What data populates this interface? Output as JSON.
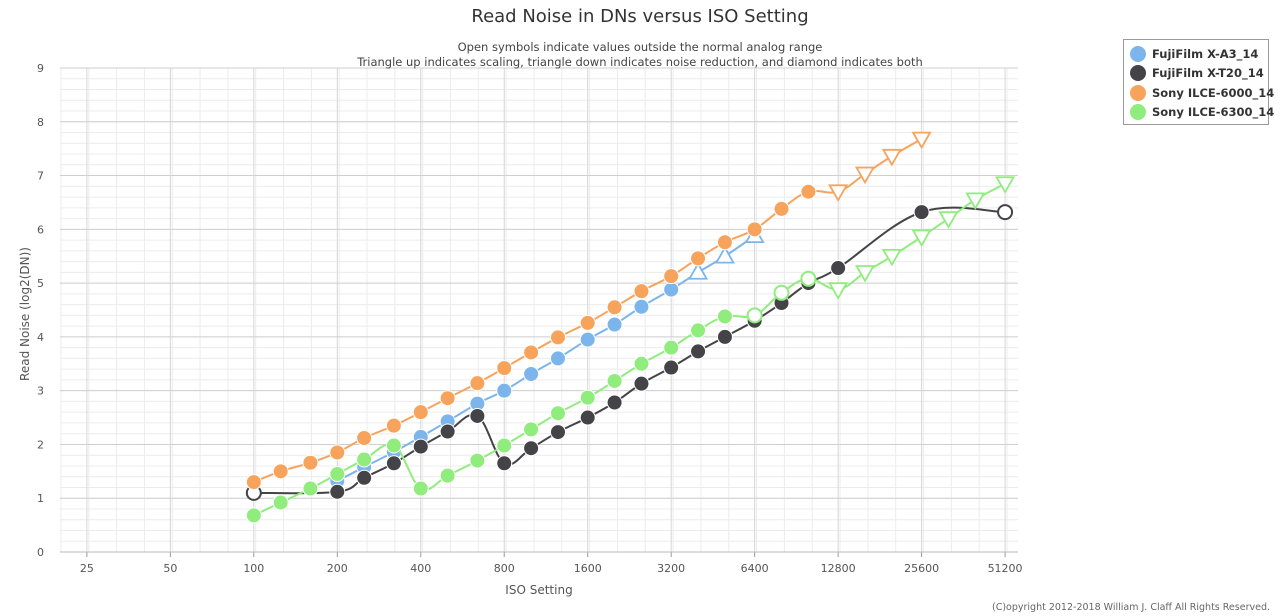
{
  "chart_data": {
    "type": "line",
    "title": "Read Noise in DNs versus ISO Setting",
    "subtitle_lines": [
      "Open symbols indicate values outside the normal analog range",
      "Triangle up indicates scaling, triangle down indicates noise reduction, and diamond indicates both"
    ],
    "xlabel": "ISO Setting",
    "ylabel": "Read Noise (log2(DN))",
    "x_scale": "log2",
    "xlim": [
      20,
      57000
    ],
    "ylim": [
      0,
      9
    ],
    "x_ticks": [
      25,
      50,
      100,
      200,
      400,
      800,
      1600,
      3200,
      6400,
      12800,
      25600,
      51200
    ],
    "y_ticks": [
      0,
      1,
      2,
      3,
      4,
      5,
      6,
      7,
      8,
      9
    ],
    "grid": true,
    "legend_position": "top-right",
    "series": [
      {
        "name": "FujiFilm X-A3_14",
        "color": "#7cb5ec",
        "points": [
          {
            "x": 200,
            "y": 1.32,
            "m": "circle"
          },
          {
            "x": 250,
            "y": 1.58,
            "m": "circle"
          },
          {
            "x": 320,
            "y": 1.86,
            "m": "circle"
          },
          {
            "x": 400,
            "y": 2.14,
            "m": "circle"
          },
          {
            "x": 500,
            "y": 2.43,
            "m": "circle"
          },
          {
            "x": 640,
            "y": 2.76,
            "m": "circle"
          },
          {
            "x": 800,
            "y": 3.0,
            "m": "circle"
          },
          {
            "x": 1000,
            "y": 3.31,
            "m": "circle"
          },
          {
            "x": 1250,
            "y": 3.6,
            "m": "circle"
          },
          {
            "x": 1600,
            "y": 3.95,
            "m": "circle"
          },
          {
            "x": 2000,
            "y": 4.23,
            "m": "circle"
          },
          {
            "x": 2500,
            "y": 4.56,
            "m": "circle"
          },
          {
            "x": 3200,
            "y": 4.88,
            "m": "circle"
          },
          {
            "x": 4000,
            "y": 5.2,
            "m": "triangle-up-open"
          },
          {
            "x": 5000,
            "y": 5.5,
            "m": "triangle-up-open"
          },
          {
            "x": 6400,
            "y": 5.88,
            "m": "triangle-up-open"
          }
        ]
      },
      {
        "name": "FujiFilm X-T20_14",
        "color": "#434348",
        "points": [
          {
            "x": 100,
            "y": 1.1,
            "m": "circle-open"
          },
          {
            "x": 200,
            "y": 1.12,
            "m": "circle"
          },
          {
            "x": 250,
            "y": 1.38,
            "m": "circle"
          },
          {
            "x": 320,
            "y": 1.65,
            "m": "circle"
          },
          {
            "x": 400,
            "y": 1.96,
            "m": "circle"
          },
          {
            "x": 500,
            "y": 2.24,
            "m": "circle"
          },
          {
            "x": 640,
            "y": 2.53,
            "m": "circle"
          },
          {
            "x": 800,
            "y": 1.65,
            "m": "circle"
          },
          {
            "x": 1000,
            "y": 1.93,
            "m": "circle"
          },
          {
            "x": 1250,
            "y": 2.23,
            "m": "circle"
          },
          {
            "x": 1600,
            "y": 2.5,
            "m": "circle"
          },
          {
            "x": 2000,
            "y": 2.78,
            "m": "circle"
          },
          {
            "x": 2500,
            "y": 3.13,
            "m": "circle"
          },
          {
            "x": 3200,
            "y": 3.43,
            "m": "circle"
          },
          {
            "x": 4000,
            "y": 3.73,
            "m": "circle"
          },
          {
            "x": 5000,
            "y": 4.0,
            "m": "circle"
          },
          {
            "x": 6400,
            "y": 4.3,
            "m": "circle"
          },
          {
            "x": 8000,
            "y": 4.63,
            "m": "circle"
          },
          {
            "x": 10000,
            "y": 5.0,
            "m": "circle"
          },
          {
            "x": 12800,
            "y": 5.28,
            "m": "circle"
          },
          {
            "x": 25600,
            "y": 6.32,
            "m": "circle"
          },
          {
            "x": 51200,
            "y": 6.32,
            "m": "circle-open"
          }
        ]
      },
      {
        "name": "Sony ILCE-6000_14",
        "color": "#f7a35c",
        "points": [
          {
            "x": 100,
            "y": 1.3,
            "m": "circle"
          },
          {
            "x": 125,
            "y": 1.5,
            "m": "circle"
          },
          {
            "x": 160,
            "y": 1.66,
            "m": "circle"
          },
          {
            "x": 200,
            "y": 1.85,
            "m": "circle"
          },
          {
            "x": 250,
            "y": 2.12,
            "m": "circle"
          },
          {
            "x": 320,
            "y": 2.35,
            "m": "circle"
          },
          {
            "x": 400,
            "y": 2.6,
            "m": "circle"
          },
          {
            "x": 500,
            "y": 2.86,
            "m": "circle"
          },
          {
            "x": 640,
            "y": 3.14,
            "m": "circle"
          },
          {
            "x": 800,
            "y": 3.42,
            "m": "circle"
          },
          {
            "x": 1000,
            "y": 3.71,
            "m": "circle"
          },
          {
            "x": 1250,
            "y": 3.99,
            "m": "circle"
          },
          {
            "x": 1600,
            "y": 4.26,
            "m": "circle"
          },
          {
            "x": 2000,
            "y": 4.55,
            "m": "circle"
          },
          {
            "x": 2500,
            "y": 4.85,
            "m": "circle"
          },
          {
            "x": 3200,
            "y": 5.13,
            "m": "circle"
          },
          {
            "x": 4000,
            "y": 5.46,
            "m": "circle"
          },
          {
            "x": 5000,
            "y": 5.76,
            "m": "circle"
          },
          {
            "x": 6400,
            "y": 6.0,
            "m": "circle"
          },
          {
            "x": 8000,
            "y": 6.38,
            "m": "circle"
          },
          {
            "x": 10000,
            "y": 6.7,
            "m": "circle"
          },
          {
            "x": 12800,
            "y": 6.7,
            "m": "triangle-down-open"
          },
          {
            "x": 16000,
            "y": 7.03,
            "m": "triangle-down-open"
          },
          {
            "x": 20000,
            "y": 7.36,
            "m": "triangle-down-open"
          },
          {
            "x": 25600,
            "y": 7.68,
            "m": "triangle-down-open"
          }
        ]
      },
      {
        "name": "Sony ILCE-6300_14",
        "color": "#90ed7d",
        "points": [
          {
            "x": 100,
            "y": 0.68,
            "m": "circle"
          },
          {
            "x": 125,
            "y": 0.92,
            "m": "circle"
          },
          {
            "x": 160,
            "y": 1.18,
            "m": "circle"
          },
          {
            "x": 200,
            "y": 1.45,
            "m": "circle"
          },
          {
            "x": 250,
            "y": 1.72,
            "m": "circle"
          },
          {
            "x": 320,
            "y": 1.98,
            "m": "circle"
          },
          {
            "x": 400,
            "y": 1.18,
            "m": "circle"
          },
          {
            "x": 500,
            "y": 1.42,
            "m": "circle"
          },
          {
            "x": 640,
            "y": 1.7,
            "m": "circle"
          },
          {
            "x": 800,
            "y": 1.98,
            "m": "circle"
          },
          {
            "x": 1000,
            "y": 2.28,
            "m": "circle"
          },
          {
            "x": 1250,
            "y": 2.58,
            "m": "circle"
          },
          {
            "x": 1600,
            "y": 2.87,
            "m": "circle"
          },
          {
            "x": 2000,
            "y": 3.18,
            "m": "circle"
          },
          {
            "x": 2500,
            "y": 3.5,
            "m": "circle"
          },
          {
            "x": 3200,
            "y": 3.8,
            "m": "circle"
          },
          {
            "x": 4000,
            "y": 4.12,
            "m": "circle"
          },
          {
            "x": 5000,
            "y": 4.38,
            "m": "circle"
          },
          {
            "x": 6400,
            "y": 4.4,
            "m": "circle-open"
          },
          {
            "x": 8000,
            "y": 4.82,
            "m": "circle-open"
          },
          {
            "x": 10000,
            "y": 5.08,
            "m": "circle-open"
          },
          {
            "x": 12800,
            "y": 4.88,
            "m": "triangle-down-open"
          },
          {
            "x": 16000,
            "y": 5.2,
            "m": "triangle-down-open"
          },
          {
            "x": 20000,
            "y": 5.5,
            "m": "triangle-down-open"
          },
          {
            "x": 25600,
            "y": 5.86,
            "m": "triangle-down-open"
          },
          {
            "x": 32000,
            "y": 6.2,
            "m": "triangle-down-open"
          },
          {
            "x": 40000,
            "y": 6.55,
            "m": "triangle-down-open"
          },
          {
            "x": 51200,
            "y": 6.85,
            "m": "triangle-down-open"
          }
        ]
      }
    ]
  },
  "legend": {
    "items": [
      {
        "label": "FujiFilm X-A3_14",
        "color": "#7cb5ec"
      },
      {
        "label": "FujiFilm X-T20_14",
        "color": "#434348"
      },
      {
        "label": "Sony ILCE-6000_14",
        "color": "#f7a35c"
      },
      {
        "label": "Sony ILCE-6300_14",
        "color": "#90ed7d"
      }
    ]
  },
  "copyright": "(C)opyright 2012-2018 William J. Claff All Rights Reserved."
}
